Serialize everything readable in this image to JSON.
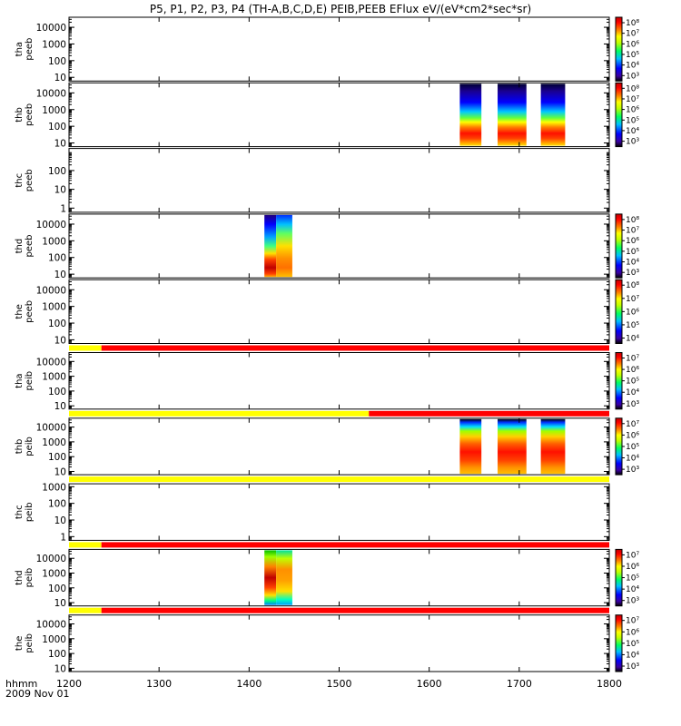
{
  "title": "P5, P1, P2, P3, P4 (TH-A,B,C,D,E) PEIB,PEEB EFlux eV/(eV*cm2*sec*sr)",
  "x_axis": {
    "prefix_label": "hhmm",
    "date_label": "2009 Nov 01",
    "ticks": [
      "1200",
      "1300",
      "1400",
      "1500",
      "1600",
      "1700",
      "1800"
    ]
  },
  "colors": {
    "flag_yellow": "#ffff00",
    "flag_red": "#ff0000",
    "colorscale": [
      "#000000",
      "#3a00a0",
      "#0000ff",
      "#00c0ff",
      "#00ff60",
      "#c0ff00",
      "#ffff00",
      "#ff8000",
      "#ff0000",
      "#c00000"
    ]
  },
  "chart_data": {
    "type": "heatmap",
    "x_range": [
      1200,
      1800
    ],
    "y_scale": "log",
    "panels": [
      {
        "id": "tha-peeb",
        "ylabel": [
          "tha",
          "peeb"
        ],
        "yticks": [
          "10000",
          "1000",
          "100",
          "10"
        ],
        "ylim": [
          6,
          40000
        ],
        "colorbar_ticks": [
          "10^8",
          "10^7",
          "10^6",
          "10^5",
          "10^4",
          "10^3"
        ],
        "colorbar_ticks_display": [
          "10⁸",
          "10⁷",
          "10⁶",
          "10⁵",
          "10⁴",
          "10³"
        ],
        "flag_bar": null,
        "blocks": []
      },
      {
        "id": "thb-peeb",
        "ylabel": [
          "thb",
          "peeb"
        ],
        "yticks": [
          "10000",
          "1000",
          "100",
          "10"
        ],
        "ylim": [
          6,
          40000
        ],
        "colorbar_ticks": [
          "10^8",
          "10^7",
          "10^6",
          "10^5",
          "10^4",
          "10^3"
        ],
        "colorbar_ticks_display": [
          "10⁸",
          "10⁷",
          "10⁶",
          "10⁵",
          "10⁴",
          "10³"
        ],
        "flag_bar": null,
        "blocks": [
          {
            "start": 1634,
            "end": 1658,
            "profile": "electron"
          },
          {
            "start": 1676,
            "end": 1708,
            "profile": "electron"
          },
          {
            "start": 1724,
            "end": 1751,
            "profile": "electron"
          }
        ]
      },
      {
        "id": "thc-peeb",
        "ylabel": [
          "thc",
          "peeb"
        ],
        "yticks": [
          "100",
          "10",
          "1"
        ],
        "ylim": [
          0.6,
          1500
        ],
        "colorbar_ticks": [],
        "colorbar_ticks_display": [],
        "flag_bar": null,
        "blocks": []
      },
      {
        "id": "thd-peeb",
        "ylabel": [
          "thd",
          "peeb"
        ],
        "yticks": [
          "10000",
          "1000",
          "100",
          "10"
        ],
        "ylim": [
          6,
          40000
        ],
        "colorbar_ticks": [
          "10^8",
          "10^7",
          "10^6",
          "10^5",
          "10^4",
          "10^3"
        ],
        "colorbar_ticks_display": [
          "10⁸",
          "10⁷",
          "10⁶",
          "10⁵",
          "10⁴",
          "10³"
        ],
        "flag_bar": null,
        "blocks": [
          {
            "start": 1417,
            "end": 1430,
            "profile": "sheath"
          },
          {
            "start": 1430,
            "end": 1448,
            "profile": "sheath_soft"
          }
        ]
      },
      {
        "id": "the-peeb",
        "ylabel": [
          "the",
          "peeb"
        ],
        "yticks": [
          "10000",
          "1000",
          "100",
          "10"
        ],
        "ylim": [
          6,
          40000
        ],
        "colorbar_ticks": [
          "10^8",
          "10^7",
          "10^6",
          "10^5",
          "10^4"
        ],
        "colorbar_ticks_display": [
          "10⁸",
          "10⁷",
          "10⁶",
          "10⁵",
          "10⁴"
        ],
        "flag_bar": null,
        "blocks": []
      },
      {
        "id": "tha-peib",
        "ylabel": [
          "tha",
          "peib"
        ],
        "yticks": [
          "10000",
          "1000",
          "100",
          "10"
        ],
        "ylim": [
          6,
          40000
        ],
        "colorbar_ticks": [
          "10^7",
          "10^6",
          "10^5",
          "10^4",
          "10^3"
        ],
        "colorbar_ticks_display": [
          "10⁷",
          "10⁶",
          "10⁵",
          "10⁴",
          "10³"
        ],
        "flag_bar": {
          "yellow_end": 1236
        },
        "blocks": []
      },
      {
        "id": "thb-peib",
        "ylabel": [
          "thb",
          "peib"
        ],
        "yticks": [
          "10000",
          "1000",
          "100",
          "10"
        ],
        "ylim": [
          6,
          40000
        ],
        "colorbar_ticks": [
          "10^7",
          "10^6",
          "10^5",
          "10^4",
          "10^3"
        ],
        "colorbar_ticks_display": [
          "10⁷",
          "10⁶",
          "10⁵",
          "10⁴",
          "10³"
        ],
        "flag_bar": {
          "yellow_end": 1533
        },
        "blocks": [
          {
            "start": 1634,
            "end": 1658,
            "profile": "ion"
          },
          {
            "start": 1676,
            "end": 1708,
            "profile": "ion"
          },
          {
            "start": 1724,
            "end": 1751,
            "profile": "ion"
          }
        ]
      },
      {
        "id": "thc-peib",
        "ylabel": [
          "thc",
          "peib"
        ],
        "yticks": [
          "1000",
          "100",
          "10",
          "1"
        ],
        "ylim": [
          0.6,
          1500
        ],
        "colorbar_ticks": [],
        "colorbar_ticks_display": [],
        "flag_bar": {
          "yellow_end": 1800
        },
        "blocks": []
      },
      {
        "id": "thd-peib",
        "ylabel": [
          "thd",
          "peib"
        ],
        "yticks": [
          "10000",
          "1000",
          "100",
          "10"
        ],
        "ylim": [
          6,
          40000
        ],
        "colorbar_ticks": [
          "10^7",
          "10^6",
          "10^5",
          "10^4",
          "10^3"
        ],
        "colorbar_ticks_display": [
          "10⁷",
          "10⁶",
          "10⁵",
          "10⁴",
          "10³"
        ],
        "flag_bar": {
          "yellow_end": 1236
        },
        "blocks": [
          {
            "start": 1417,
            "end": 1430,
            "profile": "ion_sheath"
          },
          {
            "start": 1430,
            "end": 1448,
            "profile": "ion_sheath_soft"
          }
        ]
      },
      {
        "id": "the-peib",
        "ylabel": [
          "the",
          "peib"
        ],
        "yticks": [
          "10000",
          "1000",
          "100",
          "10"
        ],
        "ylim": [
          6,
          40000
        ],
        "colorbar_ticks": [
          "10^7",
          "10^6",
          "10^5",
          "10^4",
          "10^3"
        ],
        "colorbar_ticks_display": [
          "10⁷",
          "10⁶",
          "10⁵",
          "10⁴",
          "10³"
        ],
        "flag_bar": {
          "yellow_end": 1236
        },
        "blocks": []
      }
    ]
  }
}
